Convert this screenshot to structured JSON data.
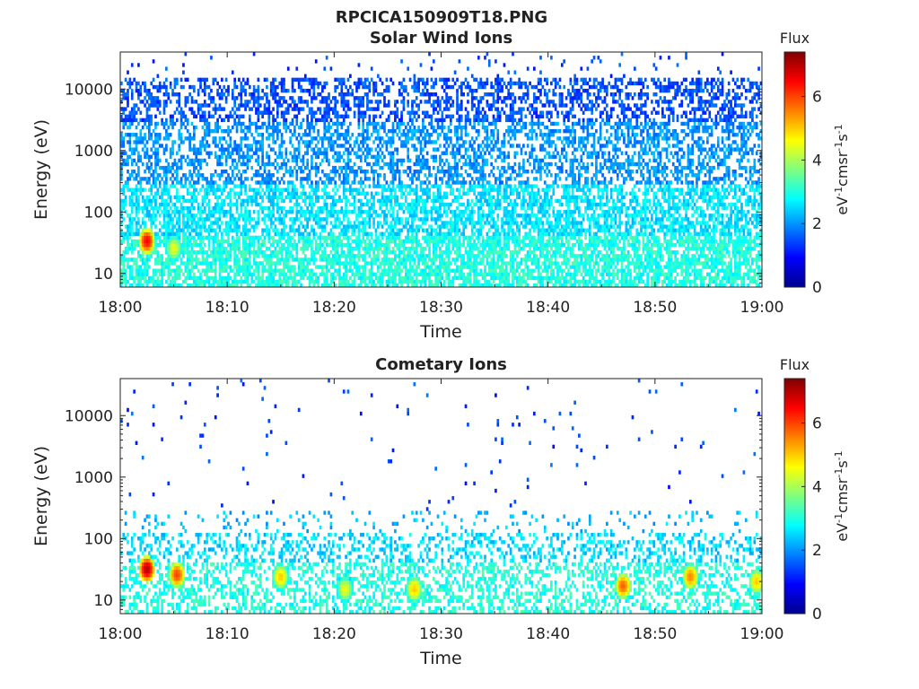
{
  "figure_title": "RPCICA150909T18.PNG",
  "chart_data": [
    {
      "type": "heatmap",
      "title": "Solar Wind Ions",
      "xlabel": "Time",
      "ylabel": "Energy (eV)",
      "x_ticks": [
        "18:00",
        "18:10",
        "18:20",
        "18:30",
        "18:40",
        "18:50",
        "19:00"
      ],
      "x_range": [
        "18:00",
        "19:00"
      ],
      "y_scale": "log",
      "y_ticks": [
        "10",
        "100",
        "1000",
        "10000"
      ],
      "ylim": [
        6,
        40000
      ],
      "colorbar": {
        "title": "Flux",
        "label": "eV-1cm-2sr-1s-1",
        "ticks": [
          "0",
          "2",
          "4",
          "6"
        ],
        "range": [
          0,
          7.4
        ]
      },
      "colormap": [
        "#00008f",
        "#0000ff",
        "#00ffff",
        "#ffff00",
        "#ff0000",
        "#800000"
      ],
      "grid": false,
      "hotspots": [
        {
          "time": "18:02.5",
          "energy": 34,
          "flux": 6.5
        },
        {
          "time": "18:05",
          "energy": 26,
          "flux": 4.5
        }
      ],
      "background_description_flux": {
        "energy_lt_40": 3.0,
        "energy_40_300": 2.6,
        "energy_300_3000": 2.0,
        "energy_gt_3000": 1.5
      }
    },
    {
      "type": "heatmap",
      "title": "Cometary Ions",
      "xlabel": "Time",
      "ylabel": "Energy (eV)",
      "x_ticks": [
        "18:00",
        "18:10",
        "18:20",
        "18:30",
        "18:40",
        "18:50",
        "19:00"
      ],
      "x_range": [
        "18:00",
        "19:00"
      ],
      "y_scale": "log",
      "y_ticks": [
        "10",
        "100",
        "1000",
        "10000"
      ],
      "ylim": [
        6,
        40000
      ],
      "colorbar": {
        "title": "Flux",
        "label": "eV-1cm-2sr-1s-1",
        "ticks": [
          "0",
          "2",
          "4",
          "6"
        ],
        "range": [
          0,
          7.4
        ]
      },
      "colormap": [
        "#00008f",
        "#0000ff",
        "#00ffff",
        "#ffff00",
        "#ff0000",
        "#800000"
      ],
      "grid": false,
      "hotspots": [
        {
          "time": "18:02.5",
          "energy": 32,
          "flux": 7.0
        },
        {
          "time": "18:05.3",
          "energy": 26,
          "flux": 6.0
        },
        {
          "time": "18:15",
          "energy": 24,
          "flux": 5.0
        },
        {
          "time": "18:21",
          "energy": 15,
          "flux": 4.5
        },
        {
          "time": "18:27.5",
          "energy": 15,
          "flux": 5.0
        },
        {
          "time": "18:47",
          "energy": 17,
          "flux": 5.8
        },
        {
          "time": "18:53.3",
          "energy": 24,
          "flux": 5.5
        },
        {
          "time": "18:59.5",
          "energy": 20,
          "flux": 5.0
        }
      ]
    }
  ]
}
